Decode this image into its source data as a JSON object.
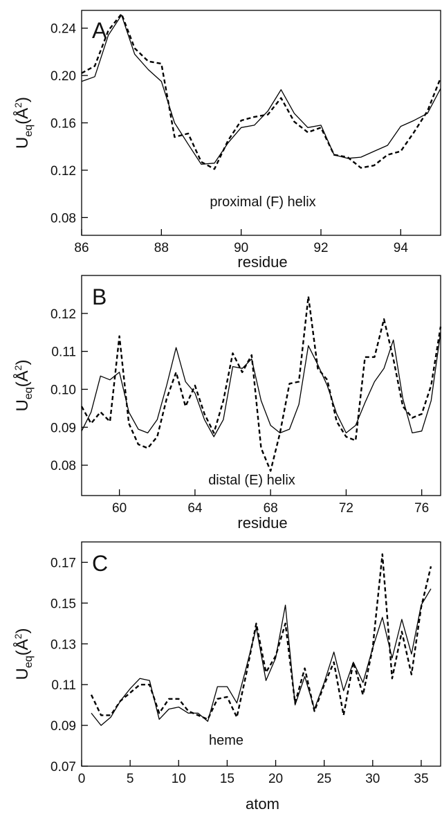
{
  "chart_data": [
    {
      "type": "line",
      "panel_label": "A",
      "annotation": "proximal (F) helix",
      "xlabel": "residue",
      "ylabel": {
        "main": "U",
        "sub": "eq",
        "paren_open": "(Å",
        "sup": "2",
        "paren_close": ")"
      },
      "xlim": [
        86,
        95
      ],
      "ylim": [
        0.065,
        0.255
      ],
      "xticks": [
        86,
        88,
        90,
        92,
        94
      ],
      "xtick_labels": [
        "86",
        "88",
        "90",
        "92",
        "94"
      ],
      "yticks": [
        0.08,
        0.12,
        0.16,
        0.2,
        0.24
      ],
      "ytick_labels": [
        "0.08",
        "0.12",
        "0.16",
        "0.20",
        "0.24"
      ],
      "series": [
        {
          "style": "solid",
          "x": [
            86,
            86.33,
            86.67,
            87,
            87.33,
            87.67,
            88,
            88.33,
            88.67,
            89,
            89.33,
            89.67,
            90,
            90.33,
            90.67,
            91,
            91.33,
            91.67,
            92,
            92.33,
            92.67,
            93,
            93.33,
            93.67,
            94,
            94.33,
            94.67,
            95
          ],
          "y": [
            0.195,
            0.199,
            0.234,
            0.251,
            0.218,
            0.205,
            0.195,
            0.16,
            0.142,
            0.125,
            0.126,
            0.143,
            0.156,
            0.158,
            0.17,
            0.188,
            0.168,
            0.156,
            0.158,
            0.133,
            0.13,
            0.131,
            0.136,
            0.141,
            0.157,
            0.162,
            0.168,
            0.189
          ]
        },
        {
          "style": "dashed",
          "x": [
            86,
            86.33,
            86.67,
            87,
            87.33,
            87.67,
            88,
            88.33,
            88.67,
            89,
            89.33,
            89.67,
            90,
            90.33,
            90.67,
            91,
            91.33,
            91.67,
            92,
            92.33,
            92.67,
            93,
            93.33,
            93.67,
            94,
            94.33,
            94.67,
            95
          ],
          "y": [
            0.202,
            0.208,
            0.238,
            0.252,
            0.223,
            0.212,
            0.21,
            0.148,
            0.151,
            0.127,
            0.121,
            0.145,
            0.162,
            0.165,
            0.167,
            0.181,
            0.161,
            0.152,
            0.156,
            0.133,
            0.131,
            0.122,
            0.124,
            0.133,
            0.136,
            0.152,
            0.17,
            0.198
          ]
        }
      ]
    },
    {
      "type": "line",
      "panel_label": "B",
      "annotation": "distal (E) helix",
      "xlabel": "residue",
      "ylabel": {
        "main": "U",
        "sub": "eq",
        "paren_open": "(Å",
        "sup": "2",
        "paren_close": ")"
      },
      "xlim": [
        58,
        77
      ],
      "ylim": [
        0.072,
        0.13
      ],
      "xticks": [
        60,
        64,
        68,
        72,
        76
      ],
      "xtick_labels": [
        "60",
        "64",
        "68",
        "72",
        "76"
      ],
      "yticks": [
        0.08,
        0.09,
        0.1,
        0.11,
        0.12
      ],
      "ytick_labels": [
        "0.08",
        "0.09",
        "0.10",
        "0.11",
        "0.12"
      ],
      "series": [
        {
          "style": "solid",
          "x": [
            58,
            58.5,
            59,
            59.5,
            60,
            60.5,
            61,
            61.5,
            62,
            62.5,
            63,
            63.5,
            64,
            64.5,
            65,
            65.5,
            66,
            66.5,
            67,
            67.5,
            68,
            68.5,
            69,
            69.5,
            70,
            70.5,
            71,
            71.5,
            72,
            72.5,
            73,
            73.5,
            74,
            74.5,
            75,
            75.5,
            76,
            76.5,
            77
          ],
          "y": [
            0.089,
            0.094,
            0.1035,
            0.1025,
            0.1045,
            0.094,
            0.0895,
            0.0885,
            0.092,
            0.101,
            0.111,
            0.102,
            0.099,
            0.092,
            0.0875,
            0.092,
            0.106,
            0.1055,
            0.108,
            0.097,
            0.0905,
            0.0885,
            0.0895,
            0.096,
            0.1115,
            0.1065,
            0.101,
            0.0935,
            0.0885,
            0.0905,
            0.0965,
            0.102,
            0.1055,
            0.113,
            0.0975,
            0.0885,
            0.089,
            0.097,
            0.115
          ]
        },
        {
          "style": "dashed",
          "x": [
            58,
            58.5,
            59,
            59.5,
            60,
            60.5,
            61,
            61.5,
            62,
            62.5,
            63,
            63.5,
            64,
            64.5,
            65,
            65.5,
            66,
            66.5,
            67,
            67.5,
            68,
            68.5,
            69,
            69.5,
            70,
            70.5,
            71,
            71.5,
            72,
            72.5,
            73,
            73.5,
            74,
            74.5,
            75,
            75.5,
            76,
            76.5,
            77
          ],
          "y": [
            0.0955,
            0.091,
            0.094,
            0.0915,
            0.114,
            0.091,
            0.0855,
            0.0845,
            0.0875,
            0.0975,
            0.1045,
            0.0955,
            0.101,
            0.0935,
            0.0885,
            0.097,
            0.1095,
            0.1045,
            0.109,
            0.0845,
            0.0785,
            0.0885,
            0.1015,
            0.102,
            0.1245,
            0.1055,
            0.1025,
            0.0915,
            0.0875,
            0.0865,
            0.1085,
            0.1085,
            0.1185,
            0.108,
            0.0955,
            0.0925,
            0.0935,
            0.101,
            0.1165
          ]
        }
      ]
    },
    {
      "type": "line",
      "panel_label": "C",
      "annotation": "heme",
      "xlabel": "atom",
      "ylabel": {
        "main": "U",
        "sub": "eq",
        "paren_open": "(Å",
        "sup": "2",
        "paren_close": ")"
      },
      "xlim": [
        0,
        37
      ],
      "ylim": [
        0.07,
        0.18
      ],
      "xticks": [
        0,
        5,
        10,
        15,
        20,
        25,
        30,
        35
      ],
      "xtick_labels": [
        "0",
        "5",
        "10",
        "15",
        "20",
        "25",
        "30",
        "35"
      ],
      "yticks": [
        0.07,
        0.09,
        0.11,
        0.13,
        0.15,
        0.17
      ],
      "ytick_labels": [
        "0.07",
        "0.09",
        "0.11",
        "0.13",
        "0.15",
        "0.17"
      ],
      "series": [
        {
          "style": "solid",
          "x": [
            1,
            2,
            3,
            4,
            5,
            6,
            7,
            8,
            9,
            10,
            11,
            12,
            13,
            14,
            15,
            16,
            17,
            18,
            19,
            20,
            21,
            22,
            23,
            24,
            25,
            26,
            27,
            28,
            29,
            30,
            31,
            32,
            33,
            34,
            35,
            36
          ],
          "y": [
            0.096,
            0.09,
            0.094,
            0.102,
            0.108,
            0.113,
            0.112,
            0.093,
            0.098,
            0.099,
            0.096,
            0.096,
            0.092,
            0.109,
            0.109,
            0.101,
            0.119,
            0.138,
            0.112,
            0.123,
            0.149,
            0.1,
            0.114,
            0.098,
            0.111,
            0.126,
            0.107,
            0.121,
            0.111,
            0.128,
            0.143,
            0.123,
            0.142,
            0.125,
            0.149,
            0.157
          ]
        },
        {
          "style": "dashed",
          "x": [
            1,
            2,
            3,
            4,
            5,
            6,
            7,
            8,
            9,
            10,
            11,
            12,
            13,
            14,
            15,
            16,
            17,
            18,
            19,
            20,
            21,
            22,
            23,
            24,
            25,
            26,
            27,
            28,
            29,
            30,
            31,
            32,
            33,
            34,
            35,
            36
          ],
          "y": [
            0.105,
            0.095,
            0.095,
            0.102,
            0.106,
            0.11,
            0.11,
            0.096,
            0.103,
            0.103,
            0.097,
            0.095,
            0.093,
            0.103,
            0.104,
            0.094,
            0.116,
            0.14,
            0.116,
            0.124,
            0.14,
            0.101,
            0.118,
            0.097,
            0.11,
            0.121,
            0.095,
            0.121,
            0.105,
            0.128,
            0.174,
            0.113,
            0.136,
            0.115,
            0.148,
            0.168
          ]
        }
      ]
    }
  ]
}
